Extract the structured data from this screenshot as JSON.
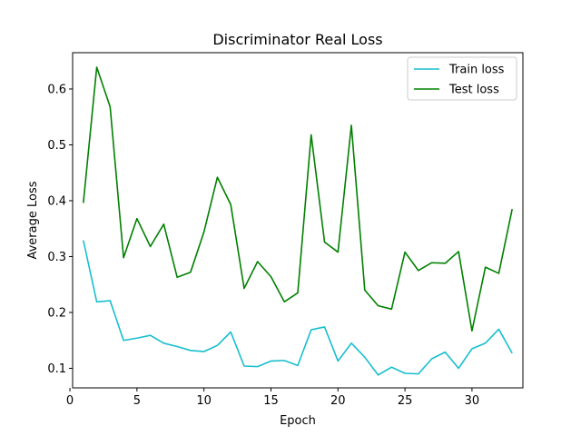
{
  "chart_data": {
    "type": "line",
    "title": "Discriminator Real Loss",
    "xlabel": "Epoch",
    "ylabel": "Average Loss",
    "xlim": [
      0.2,
      33.8
    ],
    "ylim": [
      0.065,
      0.665
    ],
    "x_ticks": [
      0,
      5,
      10,
      15,
      20,
      25,
      30
    ],
    "y_ticks": [
      0.1,
      0.2,
      0.3,
      0.4,
      0.5,
      0.6
    ],
    "grid": false,
    "legend_position": "top-right",
    "x": [
      1,
      2,
      3,
      4,
      5,
      6,
      7,
      8,
      9,
      10,
      11,
      12,
      13,
      14,
      15,
      16,
      17,
      18,
      19,
      20,
      21,
      22,
      23,
      24,
      25,
      26,
      27,
      28,
      29,
      30,
      31,
      32,
      33
    ],
    "series": [
      {
        "name": "Train loss",
        "color": "#17becf",
        "values": [
          0.329,
          0.219,
          0.221,
          0.15,
          0.154,
          0.159,
          0.145,
          0.139,
          0.132,
          0.13,
          0.141,
          0.165,
          0.104,
          0.103,
          0.113,
          0.114,
          0.105,
          0.169,
          0.174,
          0.113,
          0.145,
          0.12,
          0.088,
          0.102,
          0.091,
          0.09,
          0.117,
          0.129,
          0.1,
          0.135,
          0.145,
          0.17,
          0.127
        ]
      },
      {
        "name": "Test loss",
        "color": "#008000",
        "values": [
          0.396,
          0.639,
          0.568,
          0.298,
          0.368,
          0.318,
          0.358,
          0.263,
          0.272,
          0.344,
          0.442,
          0.393,
          0.243,
          0.291,
          0.264,
          0.219,
          0.235,
          0.518,
          0.326,
          0.308,
          0.535,
          0.24,
          0.212,
          0.206,
          0.308,
          0.275,
          0.289,
          0.288,
          0.309,
          0.167,
          0.281,
          0.27,
          0.385
        ]
      }
    ]
  }
}
